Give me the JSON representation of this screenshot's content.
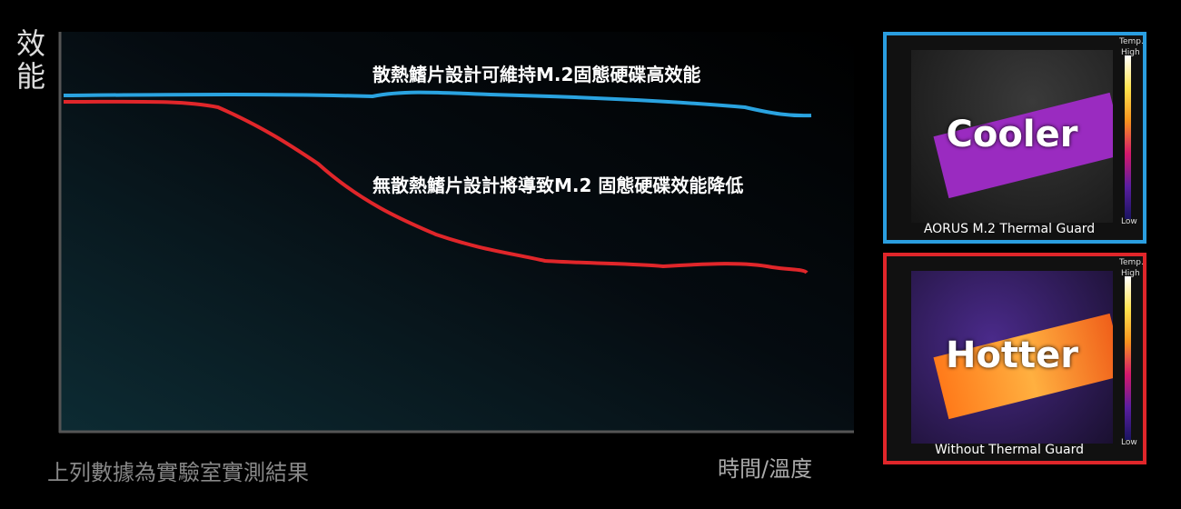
{
  "chart": {
    "y_label": "效能",
    "x_label": "時間/溫度",
    "footnote": "上列數據為實驗室實測結果",
    "annotations": [
      "散熱鰭片設計可維持M.2固態硬碟高效能",
      "無散熱鰭片設計將導致M.2 固態硬碟效能降低"
    ]
  },
  "panels": [
    {
      "temp": "Temp.",
      "high": "High",
      "low": "Low",
      "label": "Cooler",
      "caption": "AORUS M.2 Thermal Guard"
    },
    {
      "temp": "Temp.",
      "high": "High",
      "low": "Low",
      "label": "Hotter",
      "caption": "Without Thermal Guard"
    }
  ]
}
